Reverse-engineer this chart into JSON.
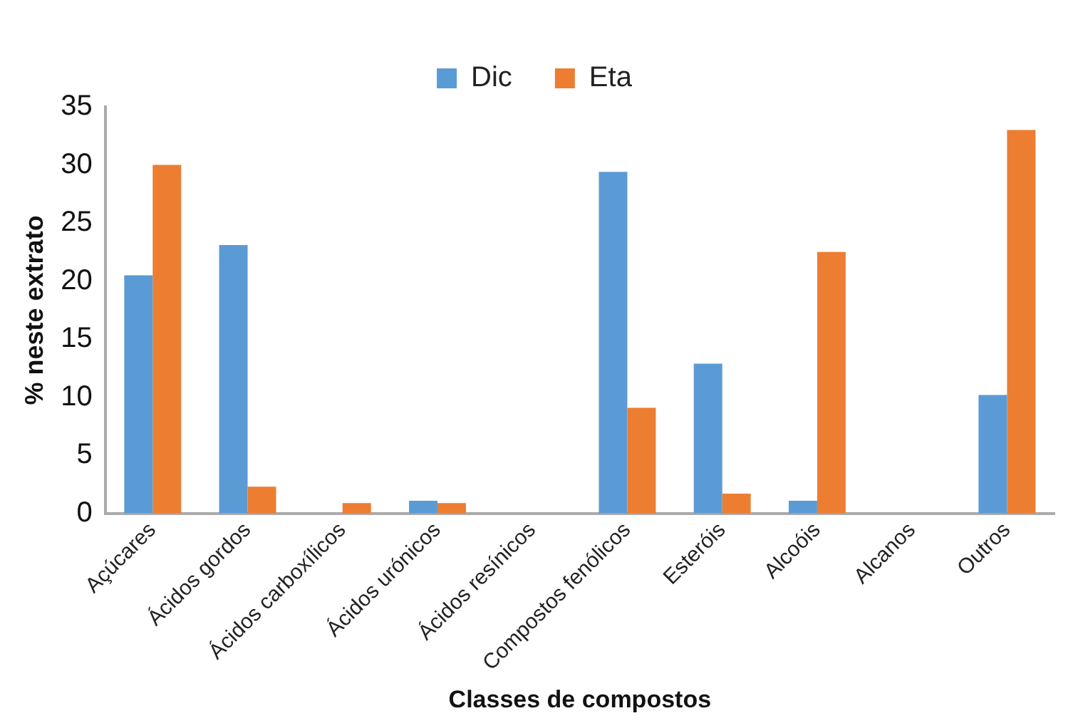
{
  "chart_data": {
    "type": "bar",
    "xlabel": "Classes de compostos",
    "ylabel": "% neste extrato",
    "categories": [
      "Açúcares",
      "Ácidos gordos",
      "Ácidos carboxílicos",
      "Ácidos urónicos",
      "Ácidos resínicos",
      "Compostos fenólicos",
      "Esteróis",
      "Alcoóis",
      "Alcanos",
      "Outros"
    ],
    "series": [
      {
        "name": "Dic",
        "color": "#5b9bd5",
        "values": [
          20.5,
          23.1,
          0,
          1.1,
          0,
          29.4,
          12.9,
          1.1,
          0,
          10.2
        ]
      },
      {
        "name": "Eta",
        "color": "#ed7d31",
        "values": [
          30.0,
          2.3,
          0.9,
          0.9,
          0,
          9.1,
          1.7,
          22.5,
          0,
          33.0
        ]
      }
    ],
    "ylim": [
      0,
      35
    ],
    "yticks": [
      0,
      5,
      10,
      15,
      20,
      25,
      30,
      35
    ],
    "grid": false,
    "legend": "top"
  }
}
